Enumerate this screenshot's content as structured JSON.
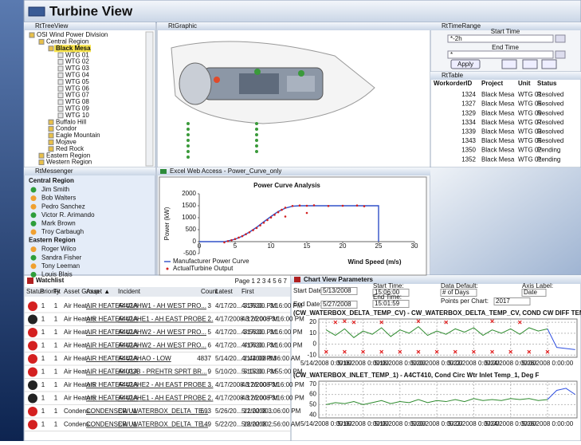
{
  "header": {
    "title": "Turbine View"
  },
  "tree": {
    "title": "RtTreeView",
    "items": [
      "OSI Wind Power Division",
      "Central Region",
      "Black Mesa",
      "WTG 01",
      "WTG 02",
      "WTG 03",
      "WTG 04",
      "WTG 05",
      "WTG 06",
      "WTG 07",
      "WTG 08",
      "WTG 09",
      "WTG 10",
      "Buffalo Hill",
      "Condor",
      "Eagle Mountain",
      "Mojave",
      "Red Rock",
      "Eastern Region",
      "Western Region"
    ]
  },
  "graphic": {
    "title": "RtGraphic"
  },
  "time_range": {
    "title": "RtTimeRange",
    "start_label": "Start Time",
    "start_value": "*-2h",
    "end_label": "End Time",
    "end_value": "*",
    "apply": "Apply"
  },
  "table": {
    "title": "RtTable",
    "columns": [
      "WorkorderID",
      "Project",
      "Unit",
      "Status"
    ],
    "rows": [
      [
        "1324",
        "Black Mesa",
        "WTG 01",
        "Resolved"
      ],
      [
        "1327",
        "Black Mesa",
        "WTG 05",
        "Resolved"
      ],
      [
        "1329",
        "Black Mesa",
        "WTG 09",
        "Resolved"
      ],
      [
        "1334",
        "Black Mesa",
        "WTG 07",
        "Resolved"
      ],
      [
        "1339",
        "Black Mesa",
        "WTG 03",
        "Resolved"
      ],
      [
        "1343",
        "Black Mesa",
        "WTG 05",
        "Resolved"
      ],
      [
        "1350",
        "Black Mesa",
        "WTG 02",
        "Pending"
      ],
      [
        "1352",
        "Black Mesa",
        "WTG 01",
        "Pending"
      ]
    ]
  },
  "messenger": {
    "title": "RtMessenger",
    "groups": [
      {
        "name": "Central Region",
        "people": [
          {
            "name": "Jim Smith",
            "color": "#2e9e3a"
          },
          {
            "name": "Bob Walters",
            "color": "#f0a030"
          },
          {
            "name": "Pedro Sanchez",
            "color": "#f0a030"
          },
          {
            "name": "Victor R. Arimando",
            "color": "#2e9e3a"
          },
          {
            "name": "Mark Brown",
            "color": "#2e9e3a"
          },
          {
            "name": "Troy Carbaugh",
            "color": "#f0a030"
          }
        ]
      },
      {
        "name": "Eastern Region",
        "people": [
          {
            "name": "Roger Wilco",
            "color": "#f0a030"
          },
          {
            "name": "Sandra Fisher",
            "color": "#2e9e3a"
          },
          {
            "name": "Tony Leeman",
            "color": "#f0a030"
          },
          {
            "name": "Louis Blais",
            "color": "#2e9e3a"
          }
        ]
      }
    ]
  },
  "excel": {
    "title": "Excel Web Access - Power_Curve_only",
    "chart": {
      "type": "line",
      "title": "Power Curve Analysis",
      "ylabel": "Power (kW)",
      "xlabel": "Wind Speed (m/s)",
      "xlim": [
        0,
        30
      ],
      "xticks": [
        0,
        5,
        10,
        15,
        20,
        25,
        30
      ],
      "ylim": [
        -500,
        2000
      ],
      "yticks": [
        -500,
        0,
        500,
        1000,
        1500,
        2000
      ],
      "series": [
        {
          "name": "Manufacturer Power Curve",
          "color": "#3050c8",
          "x": [
            0,
            3.5,
            5,
            6,
            7,
            8,
            9,
            10,
            11,
            12,
            13,
            14,
            25,
            25
          ],
          "values": [
            0,
            0,
            100,
            230,
            400,
            600,
            830,
            1050,
            1260,
            1400,
            1480,
            1500,
            1500,
            0
          ]
        },
        {
          "name": "ActualTurbine Output",
          "color": "#d42020",
          "x": [
            3.5,
            4,
            4.5,
            5,
            5.5,
            6,
            6.5,
            7,
            7.5,
            8,
            8.5,
            9,
            9.5,
            10,
            10.5,
            11,
            11.5,
            12,
            12,
            13,
            14,
            15,
            15,
            16,
            18,
            20,
            22,
            23
          ],
          "values": [
            -30,
            20,
            60,
            110,
            170,
            230,
            310,
            390,
            480,
            570,
            680,
            790,
            900,
            1010,
            1120,
            1230,
            1330,
            1420,
            1050,
            1490,
            1510,
            1500,
            1200,
            1520,
            1490,
            1500,
            1510,
            1480
          ]
        }
      ]
    }
  },
  "watchlist": {
    "title": "Watchlist",
    "pager": "Page 1 2 3 4 5 6 7",
    "columns": [
      "Status",
      "Priority",
      "Fit",
      "Asset Group",
      "Asset ▲",
      "Incident",
      "Count",
      "Latest",
      "First"
    ],
    "rows": [
      {
        "status_color": "#d42020",
        "cells": [
          "1",
          "1",
          "Air Heat...",
          "AIR HEATER U1A",
          "A442AHW1 - AH WEST PRO...",
          "3",
          "4/17/20... 3:36:00 PM",
          "4/17/20... 3:16:00 PM"
        ]
      },
      {
        "status_color": "#222222",
        "cells": [
          "1",
          "1",
          "Air Heaters",
          "AIR HEATER U1A",
          "A442AHE1 - AH EAST PROBE ...",
          "2",
          "4/17/2008 3:26:00 PM",
          "4/17/2008 3:16:00 PM"
        ]
      },
      {
        "status_color": "#d42020",
        "cells": [
          "1",
          "1",
          "Air Heat...",
          "AIR HEATER U1A",
          "A442AHW2 - AH WEST PRO...",
          "5",
          "4/17/20... 3:56:00 PM",
          "4/17/20... 3:16:00 PM"
        ]
      },
      {
        "status_color": "#d42020",
        "cells": [
          "1",
          "1",
          "Air Heat...",
          "AIR HEATER U1A",
          "A442AHW2 - AH WEST PRO...",
          "6",
          "4/17/20... 4:06:00 PM",
          "4/17/20... 3:16:00 PM"
        ]
      },
      {
        "status_color": "#d42020",
        "cells": [
          "1",
          "1",
          "Air Heat...",
          "AIR HEATER U1A",
          "A442AHAO - LOW",
          "4837",
          "5/14/20... 1:44:00 PM",
          "4/1/2008 8:36:00 AM"
        ]
      },
      {
        "status_color": "#d42020",
        "cells": [
          "1",
          "1",
          "Air Heat...",
          "AIR HEATER U1A",
          "A4033B - PREHTR SPRT BR...",
          "9",
          "5/10/20... 5:15:00 PM",
          "5/10/20... 3:55:00 PM"
        ]
      },
      {
        "status_color": "#222222",
        "cells": [
          "1",
          "1",
          "Air Heaters",
          "AIR HEATER U1A",
          "A442AHE2 - AH EAST PROBE ...",
          "3",
          "4/17/2008 3:26:00 PM",
          "4/17/2008 3:16:00 PM"
        ]
      },
      {
        "status_color": "#222222",
        "cells": [
          "1",
          "1",
          "Air Heaters",
          "AIR HEATER U1A",
          "A442AHE1 - AH EAST PROBE ...",
          "2",
          "4/17/2008 3:26:00 PM",
          "4/17/2008 3:16:00 PM"
        ]
      },
      {
        "status_color": "#d42020",
        "cells": [
          "1",
          "1",
          "Condens...",
          "CONDENSER U1",
          "CW_WATERBOX_DELTA_TE...",
          "693",
          "5/26/20... 12:02:00...",
          "5/1/2008 3:06:00 PM"
        ]
      },
      {
        "status_color": "#d42020",
        "cells": [
          "1",
          "1",
          "Condens...",
          "CONDENSER U1",
          "CW_WATERBOX_DELTA_TE...",
          "149",
          "5/22/20... 12:02:00...",
          "5/8/2008 2:56:00 AM"
        ]
      }
    ]
  },
  "chart_view": {
    "title": "Chart View Parameters",
    "params": [
      {
        "label": "Start Date:",
        "value": "5/13/2008"
      },
      {
        "label": "Start Time:",
        "value": "15:06:00"
      },
      {
        "label": "End Date:",
        "value": "5/27/2008"
      },
      {
        "label": "End Time:",
        "value": "15:01:59"
      },
      {
        "label": "Data Default:",
        "value": "# of Days"
      },
      {
        "label": "Points per Chart:",
        "value": "2017"
      },
      {
        "label": "Axis Label:",
        "value": "Date"
      }
    ],
    "charts": [
      {
        "type": "line",
        "title": "(CW_WATERBOX_DELTA_TEMP_CV) - CW_WATERBOX_DELTA_TEMP_CV, COND CW DIFF TEMP, DEG F",
        "xlim": [
          13.6,
          27.6
        ],
        "xticks": [
          {
            "value": 14,
            "label": "5/14/2008 0:00:00"
          },
          {
            "value": 16,
            "label": "5/16/2008 0:00:00"
          },
          {
            "value": 18,
            "label": "5/18/2008 0:00:00"
          },
          {
            "value": 20,
            "label": "5/20/2008 0:00:00"
          },
          {
            "value": 22,
            "label": "5/22/2008 0:00:00"
          },
          {
            "value": 24,
            "label": "5/24/2008 0:00:00"
          },
          {
            "value": 26,
            "label": "5/26/2008 0:00:00"
          }
        ],
        "ylim": [
          -12,
          23
        ],
        "yticks": [
          20,
          10,
          0,
          -10
        ],
        "series": [
          {
            "color": "#2e8b2e",
            "x": [
              14,
              14.5,
              15,
              15.5,
              16,
              16.5,
              17,
              17.5,
              18,
              18.5,
              19,
              19.5,
              20,
              20.5,
              21,
              21.5,
              22,
              22.5,
              23,
              23.5,
              24,
              24.5,
              25,
              25.5,
              26
            ],
            "values": [
              13,
              8,
              14,
              6,
              12,
              9,
              15,
              7,
              13,
              10,
              16,
              8,
              12,
              9,
              14,
              11,
              15,
              8,
              13,
              10,
              14,
              9,
              15,
              12,
              14
            ]
          },
          {
            "color": "#3050e0",
            "x": [
              26,
              26.5,
              27,
              27.5
            ],
            "values": [
              14,
              -3,
              -4,
              -5
            ]
          },
          {
            "color": "#e02020",
            "mode": "markers",
            "x": [
              14.5,
              15,
              15.5,
              17,
              19,
              20.5,
              23,
              24.5,
              14,
              15,
              16,
              17,
              18,
              19,
              20,
              21,
              22,
              23,
              24,
              25,
              26
            ],
            "values": [
              20,
              21,
              20,
              20,
              21,
              20,
              21,
              20,
              -7,
              -7,
              -7,
              -7,
              -7,
              -7,
              -7,
              -7,
              -7,
              -7,
              -7,
              -7,
              -7
            ]
          }
        ]
      },
      {
        "type": "line",
        "title": "(CW_WATERBOX_INLET_TEMP_1) - A4CT410, Cond Circ Wtr Inlet Temp_1, Deg F",
        "xlim": [
          13.6,
          27.6
        ],
        "xticks": [
          {
            "value": 14,
            "label": "5/14/2008 0:00:00"
          },
          {
            "value": 16,
            "label": "5/16/2008 0:00:00"
          },
          {
            "value": 18,
            "label": "5/18/2008 0:00:00"
          },
          {
            "value": 20,
            "label": "5/20/2008 0:00:00"
          },
          {
            "value": 22,
            "label": "5/22/2008 0:00:00"
          },
          {
            "value": 24,
            "label": "5/24/2008 0:00:00"
          },
          {
            "value": 26,
            "label": "5/26/2008 0:00:00"
          }
        ],
        "ylim": [
          37,
          73
        ],
        "yticks": [
          70,
          60,
          50,
          40
        ],
        "series": [
          {
            "color": "#2e8b2e",
            "x": [
              14,
              14.5,
              15,
              15.5,
              16,
              16.5,
              17,
              17.5,
              18,
              18.5,
              19,
              19.5,
              20,
              20.5,
              21,
              21.5,
              22,
              22.5,
              23,
              23.5,
              24,
              24.5,
              25,
              25.5,
              26
            ],
            "values": [
              50,
              52,
              51,
              53,
              50,
              52,
              54,
              51,
              53,
              52,
              55,
              52,
              54,
              53,
              55,
              53,
              56,
              54,
              55,
              54,
              56,
              55,
              56,
              54,
              55
            ]
          },
          {
            "color": "#3050e0",
            "x": [
              26,
              26.5,
              27,
              27.5
            ],
            "values": [
              55,
              64,
              66,
              60
            ]
          }
        ]
      }
    ]
  }
}
